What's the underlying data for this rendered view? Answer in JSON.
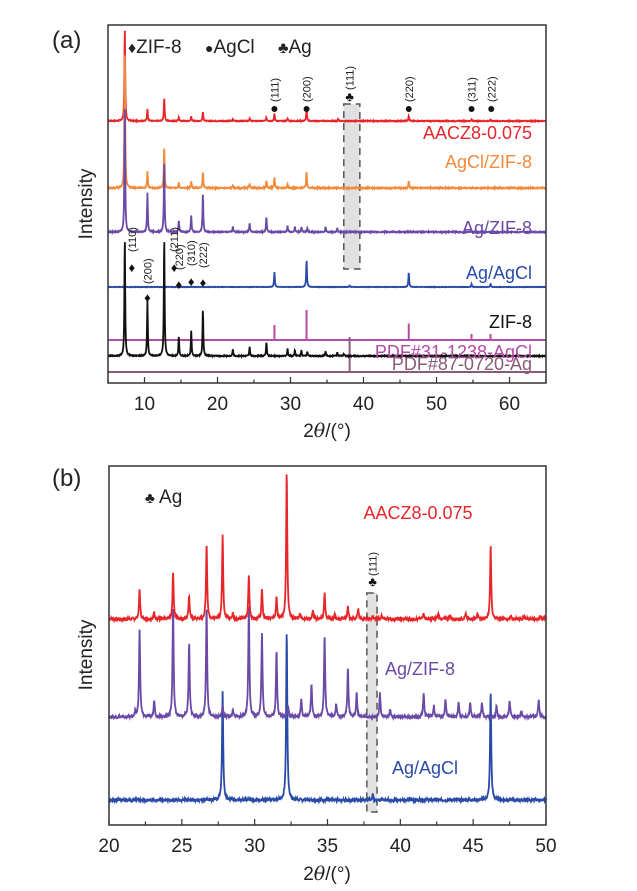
{
  "chart_data": [
    {
      "panel": "(a)",
      "type": "line",
      "xlabel_prefix": "2",
      "xlabel_theta": "θ",
      "xlabel_suffix": "/(°)",
      "ylabel": "Intensity",
      "xlim": [
        5,
        65
      ],
      "xticks": [
        10,
        20,
        30,
        40,
        50,
        60
      ],
      "legend": [
        {
          "marker": "♦",
          "label": "ZIF-8"
        },
        {
          "marker": "●",
          "label": "AgCl"
        },
        {
          "marker": "♣",
          "label": "Ag"
        }
      ],
      "highlight_range": [
        37.3,
        39.5
      ],
      "series": [
        {
          "name": "AACZ8-0.075",
          "color": "#e8262a",
          "peaks": [
            [
              7.3,
              1.0
            ],
            [
              10.4,
              0.13
            ],
            [
              12.7,
              0.25
            ],
            [
              14.7,
              0.04
            ],
            [
              16.4,
              0.05
            ],
            [
              18.0,
              0.1
            ],
            [
              22.1,
              0.02
            ],
            [
              24.4,
              0.03
            ],
            [
              26.7,
              0.04
            ],
            [
              27.8,
              0.08
            ],
            [
              29.6,
              0.03
            ],
            [
              32.2,
              0.13
            ],
            [
              36.5,
              0.02
            ],
            [
              46.2,
              0.06
            ],
            [
              54.8,
              0.015
            ],
            [
              57.4,
              0.015
            ]
          ]
        },
        {
          "name": "AgCl/ZIF-8",
          "color": "#f28a3c",
          "peaks": [
            [
              7.3,
              1.0
            ],
            [
              10.4,
              0.12
            ],
            [
              12.7,
              0.3
            ],
            [
              14.7,
              0.04
            ],
            [
              16.4,
              0.05
            ],
            [
              18.0,
              0.12
            ],
            [
              22.1,
              0.02
            ],
            [
              24.4,
              0.03
            ],
            [
              26.7,
              0.05
            ],
            [
              27.8,
              0.08
            ],
            [
              29.6,
              0.03
            ],
            [
              32.2,
              0.12
            ],
            [
              46.2,
              0.05
            ]
          ]
        },
        {
          "name": "Ag/ZIF-8",
          "color": "#6a4aa6",
          "peaks": [
            [
              7.3,
              1.0
            ],
            [
              10.4,
              0.3
            ],
            [
              12.7,
              0.55
            ],
            [
              14.7,
              0.09
            ],
            [
              16.4,
              0.13
            ],
            [
              18.0,
              0.3
            ],
            [
              22.1,
              0.04
            ],
            [
              24.4,
              0.07
            ],
            [
              26.7,
              0.12
            ],
            [
              29.6,
              0.05
            ],
            [
              30.6,
              0.04
            ],
            [
              31.5,
              0.04
            ],
            [
              32.3,
              0.03
            ],
            [
              34.8,
              0.04
            ],
            [
              36.4,
              0.03
            ]
          ]
        },
        {
          "name": "Ag/AgCl",
          "color": "#2a4aa8",
          "peaks": [
            [
              27.8,
              0.3
            ],
            [
              32.2,
              0.55
            ],
            [
              38.1,
              0.03
            ],
            [
              46.2,
              0.3
            ],
            [
              54.8,
              0.06
            ],
            [
              57.4,
              0.06
            ]
          ]
        },
        {
          "name": "ZIF-8",
          "color": "#111111",
          "peaks": [
            [
              7.3,
              1.0
            ],
            [
              10.4,
              0.46
            ],
            [
              12.7,
              1.0
            ],
            [
              14.7,
              0.17
            ],
            [
              16.4,
              0.21
            ],
            [
              18.0,
              0.4
            ],
            [
              22.1,
              0.06
            ],
            [
              24.4,
              0.08
            ],
            [
              26.7,
              0.12
            ],
            [
              29.6,
              0.06
            ],
            [
              30.6,
              0.05
            ],
            [
              31.5,
              0.05
            ],
            [
              32.3,
              0.04
            ],
            [
              34.8,
              0.04
            ],
            [
              36.4,
              0.03
            ],
            [
              37.3,
              0.02
            ]
          ]
        }
      ],
      "annotations_agcl": [
        {
          "hkl": "(111)",
          "x": 27.8
        },
        {
          "hkl": "(200)",
          "x": 32.2
        },
        {
          "hkl": "(220)",
          "x": 46.2
        },
        {
          "hkl": "(311)",
          "x": 54.8
        },
        {
          "hkl": "(222)",
          "x": 57.5
        }
      ],
      "annotation_ag": {
        "hkl": "(111)",
        "x": 38.1
      },
      "annotations_zif8": [
        {
          "hkl": "(110)",
          "x": 7.3
        },
        {
          "hkl": "(200)",
          "x": 10.4
        },
        {
          "hkl": "(211)",
          "x": 12.7
        },
        {
          "hkl": "(220)",
          "x": 14.7
        },
        {
          "hkl": "(310)",
          "x": 16.4
        },
        {
          "hkl": "(222)",
          "x": 18.0
        }
      ],
      "reference_patterns": [
        {
          "name": "PDF#31-1238-AgCl",
          "color": "#b54aa8",
          "lines": [
            [
              27.8,
              0.5
            ],
            [
              32.2,
              1.0
            ],
            [
              46.2,
              0.55
            ],
            [
              54.8,
              0.2
            ],
            [
              57.4,
              0.2
            ]
          ]
        },
        {
          "name": "PDF#87-0720-Ag",
          "color": "#8a5a7a",
          "lines": [
            [
              38.1,
              1.0
            ]
          ]
        }
      ]
    },
    {
      "panel": "(b)",
      "type": "line",
      "xlabel_prefix": "2",
      "xlabel_theta": "θ",
      "xlabel_suffix": "/(°)",
      "ylabel": "Intensity",
      "xlim": [
        20,
        50
      ],
      "xticks": [
        20,
        25,
        30,
        35,
        40,
        45,
        50
      ],
      "legend": [
        {
          "marker": "♣",
          "label": "Ag"
        }
      ],
      "highlight_range": [
        37.7,
        38.4
      ],
      "annotation_ag": {
        "hkl": "(111)",
        "x": 38.1
      },
      "series": [
        {
          "name": "AACZ8-0.075",
          "color": "#e8262a",
          "peaks": [
            [
              22.1,
              0.28
            ],
            [
              23.1,
              0.06
            ],
            [
              24.4,
              0.45
            ],
            [
              25.5,
              0.22
            ],
            [
              26.7,
              0.72
            ],
            [
              27.8,
              0.8
            ],
            [
              28.5,
              0.05
            ],
            [
              29.6,
              0.42
            ],
            [
              30.5,
              0.28
            ],
            [
              31.5,
              0.22
            ],
            [
              32.2,
              1.4
            ],
            [
              33.1,
              0.05
            ],
            [
              34.0,
              0.08
            ],
            [
              34.8,
              0.25
            ],
            [
              35.5,
              0.05
            ],
            [
              36.4,
              0.13
            ],
            [
              37.1,
              0.1
            ],
            [
              38.1,
              0.03
            ],
            [
              38.7,
              0.03
            ],
            [
              41.6,
              0.06
            ],
            [
              42.6,
              0.05
            ],
            [
              43.4,
              0.04
            ],
            [
              44.5,
              0.05
            ],
            [
              45.3,
              0.05
            ],
            [
              46.2,
              0.7
            ],
            [
              47.6,
              0.03
            ],
            [
              48.5,
              0.03
            ],
            [
              49.6,
              0.03
            ]
          ]
        },
        {
          "name": "Ag/ZIF-8",
          "color": "#6a4aa6",
          "peaks": [
            [
              21.8,
              0.04
            ],
            [
              22.1,
              0.8
            ],
            [
              23.1,
              0.16
            ],
            [
              24.4,
              1.0
            ],
            [
              25.5,
              0.68
            ],
            [
              26.7,
              1.0
            ],
            [
              27.8,
              0.1
            ],
            [
              28.5,
              0.06
            ],
            [
              29.6,
              1.0
            ],
            [
              30.5,
              0.77
            ],
            [
              31.5,
              0.6
            ],
            [
              32.3,
              0.1
            ],
            [
              33.2,
              0.16
            ],
            [
              33.9,
              0.3
            ],
            [
              34.8,
              0.74
            ],
            [
              35.6,
              0.12
            ],
            [
              36.4,
              0.45
            ],
            [
              37.0,
              0.22
            ],
            [
              38.6,
              0.22
            ],
            [
              39.3,
              0.07
            ],
            [
              41.6,
              0.22
            ],
            [
              42.3,
              0.1
            ],
            [
              43.1,
              0.17
            ],
            [
              44.0,
              0.14
            ],
            [
              44.8,
              0.14
            ],
            [
              45.6,
              0.14
            ],
            [
              46.6,
              0.1
            ],
            [
              47.5,
              0.16
            ],
            [
              48.3,
              0.06
            ],
            [
              49.5,
              0.16
            ]
          ]
        },
        {
          "name": "Ag/AgCl",
          "color": "#2a4aa8",
          "peaks": [
            [
              27.8,
              1.0
            ],
            [
              32.2,
              1.55
            ],
            [
              38.1,
              0.05
            ],
            [
              46.2,
              1.0
            ]
          ]
        }
      ]
    }
  ]
}
